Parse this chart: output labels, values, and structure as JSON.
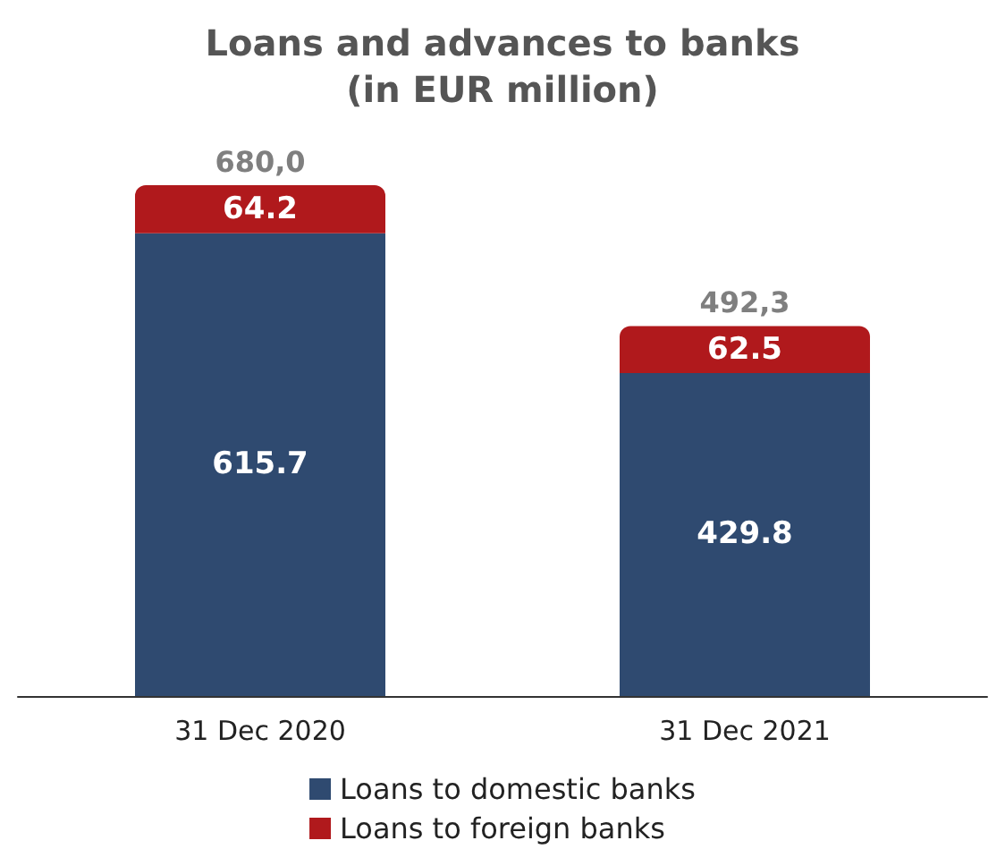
{
  "chart_data": {
    "type": "bar",
    "title": "Loans and advances to banks\n(in EUR million)",
    "categories": [
      "31 Dec 2020",
      "31 Dec 2021"
    ],
    "stacked": true,
    "data_labels": true,
    "totals": [
      "680,0",
      "492,3"
    ],
    "legend": "bottom",
    "series": [
      {
        "name": "Loans to domestic banks",
        "color": "#2f4a70",
        "values": [
          615.7,
          429.8
        ]
      },
      {
        "name": "Loans to foreign banks",
        "color": "#b0191c",
        "values": [
          64.2,
          62.5
        ]
      }
    ]
  }
}
